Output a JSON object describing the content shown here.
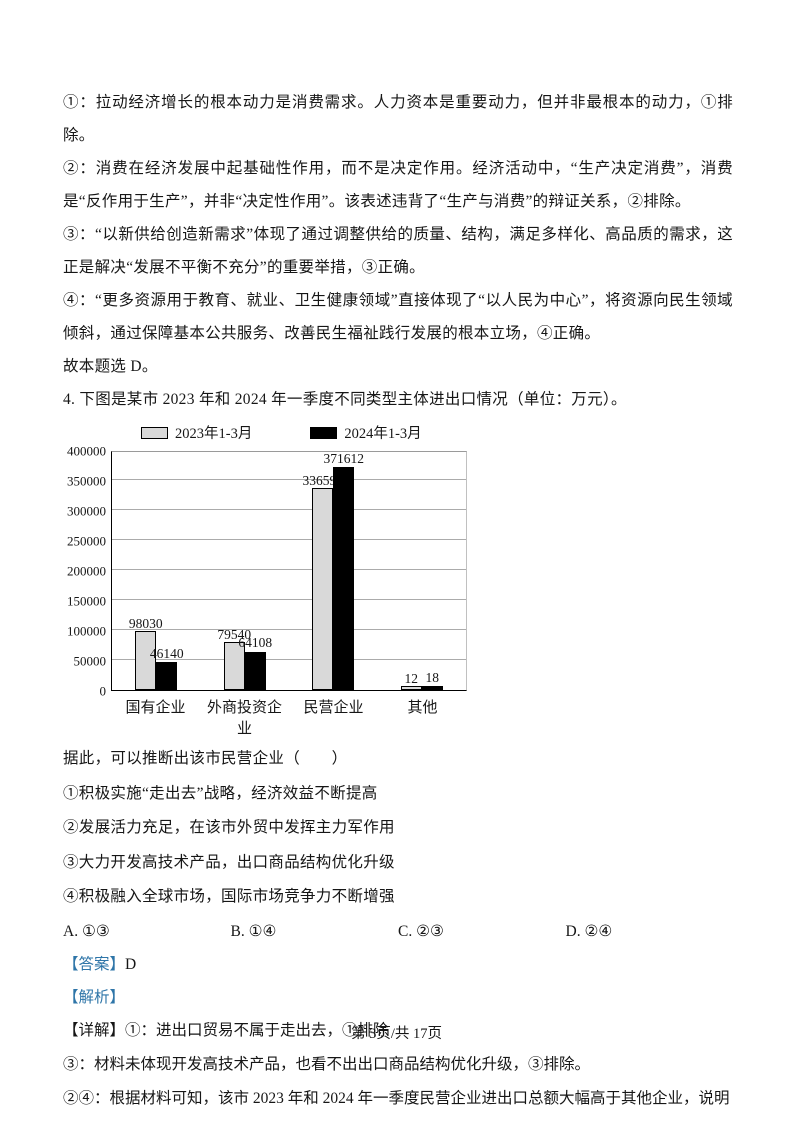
{
  "doc": {
    "explanations": [
      "①：拉动经济增长的根本动力是消费需求。人力资本是重要动力，但并非最根本的动力，①排除。",
      "②：消费在经济发展中起基础性作用，而不是决定作用。经济活动中，“生产决定消费”，消费是“反作用于生产”，并非“决定性作用”。该表述违背了“生产与消费”的辩证关系，②排除。",
      "③：“以新供给创造新需求”体现了通过调整供给的质量、结构，满足多样化、高品质的需求，这正是解决“发展不平衡不充分”的重要举措，③正确。",
      "④：“更多资源用于教育、就业、卫生健康领域”直接体现了“以人民为中心”，将资源向民生领域倾斜，通过保障基本公共服务、改善民生福祉践行发展的根本立场，④正确。"
    ],
    "conclusion": "故本题选 D。",
    "q4_intro": "4.  下图是某市 2023 年和 2024 年一季度不同类型主体进出口情况（单位：万元）。",
    "q4_stem": "据此，可以推断出该市民营企业（　　）",
    "statements": [
      "①积极实施“走出去”战略，经济效益不断提高",
      "②发展活力充足，在该市外贸中发挥主力军作用",
      "③大力开发高技术产品，出口商品结构优化升级",
      "④积极融入全球市场，国际市场竞争力不断增强"
    ],
    "options": [
      "A. ①③",
      "B. ①④",
      "C. ②③",
      "D. ②④"
    ],
    "answer_label": "【答案】",
    "answer_value": "D",
    "analysis_label": "【解析】",
    "detail_label": "【详解】",
    "details": [
      "①：进出口贸易不属于走出去，①排除",
      "③：材料未体现开发高技术产品，也看不出出口商品结构优化升级，③排除。",
      "②④：根据材料可知，该市 2023 年和 2024 年一季度民营企业进出口总额大幅高于其他企业，说明该市民"
    ],
    "footer": "第 3页/共 17页",
    "accent_color": "#2e75a8"
  },
  "chart_data": {
    "type": "bar",
    "title": "某市2023年和2024年一季度不同类型主体进出口情况",
    "unit": "万元",
    "categories": [
      "国有企业",
      "外商投资企业",
      "民营企业",
      "其他"
    ],
    "series": [
      {
        "name": "2023年1-3月",
        "color": "#d9d9d9",
        "values": [
          98030,
          79540,
          336591,
          12
        ]
      },
      {
        "name": "2024年1-3月",
        "color": "#000000",
        "values": [
          46140,
          64108,
          371612,
          18
        ]
      }
    ],
    "ylim": [
      0,
      400000
    ],
    "ytick_step": 50000,
    "grid": true,
    "legend_position": "top"
  }
}
